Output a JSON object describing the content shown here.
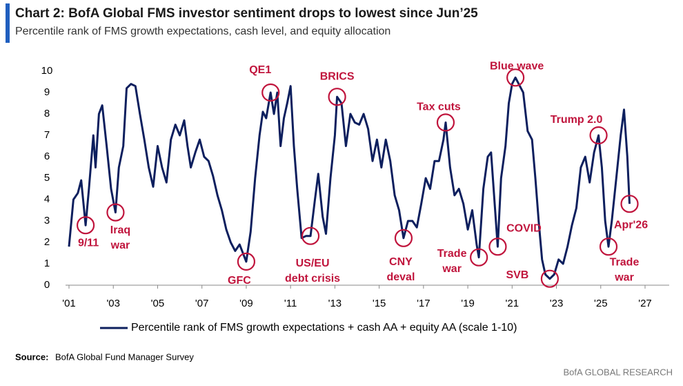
{
  "chart_data": {
    "type": "line",
    "title": "Chart 2: BofA Global FMS investor sentiment drops to lowest since Jun’25",
    "subtitle": "Percentile rank of FMS growth expectations, cash level, and equity allocation",
    "source_label": "Source:",
    "source": "BofA Global Fund Manager Survey",
    "footer": "BofA GLOBAL RESEARCH",
    "xlim": [
      2001,
      2027
    ],
    "ylim": [
      0,
      10
    ],
    "yticks": [
      0,
      1,
      2,
      3,
      4,
      5,
      6,
      7,
      8,
      9,
      10
    ],
    "xticks": [
      {
        "value": 2001,
        "label": "'01"
      },
      {
        "value": 2003,
        "label": "'03"
      },
      {
        "value": 2005,
        "label": "'05"
      },
      {
        "value": 2007,
        "label": "'07"
      },
      {
        "value": 2009,
        "label": "'09"
      },
      {
        "value": 2011,
        "label": "'11"
      },
      {
        "value": 2013,
        "label": "'13"
      },
      {
        "value": 2015,
        "label": "'15"
      },
      {
        "value": 2017,
        "label": "'17"
      },
      {
        "value": 2019,
        "label": "'19"
      },
      {
        "value": 2021,
        "label": "'21"
      },
      {
        "value": 2023,
        "label": "'23"
      },
      {
        "value": 2025,
        "label": "'25"
      },
      {
        "value": 2027,
        "label": "'27"
      }
    ],
    "grid": false,
    "annotation_color": "#c0143c",
    "series": [
      {
        "name": "Percentile rank of FMS growth expectations + cash AA + equity AA (scale 1-10)",
        "color": "#0d1f5e",
        "x": [
          2001.0,
          2001.2,
          2001.4,
          2001.55,
          2001.75,
          2001.9,
          2002.1,
          2002.2,
          2002.35,
          2002.5,
          2002.7,
          2002.9,
          2003.1,
          2003.25,
          2003.45,
          2003.6,
          2003.8,
          2004.0,
          2004.2,
          2004.4,
          2004.6,
          2004.8,
          2005.0,
          2005.2,
          2005.4,
          2005.6,
          2005.8,
          2006.0,
          2006.2,
          2006.35,
          2006.5,
          2006.7,
          2006.9,
          2007.1,
          2007.3,
          2007.5,
          2007.7,
          2007.9,
          2008.1,
          2008.3,
          2008.5,
          2008.7,
          2009.0,
          2009.2,
          2009.4,
          2009.6,
          2009.75,
          2009.9,
          2010.1,
          2010.25,
          2010.4,
          2010.55,
          2010.7,
          2010.85,
          2011.0,
          2011.15,
          2011.3,
          2011.5,
          2011.7,
          2011.9,
          2012.1,
          2012.25,
          2012.45,
          2012.6,
          2012.8,
          2013.0,
          2013.1,
          2013.3,
          2013.5,
          2013.7,
          2013.9,
          2014.1,
          2014.3,
          2014.5,
          2014.7,
          2014.9,
          2015.1,
          2015.3,
          2015.5,
          2015.7,
          2015.9,
          2016.1,
          2016.3,
          2016.5,
          2016.7,
          2016.9,
          2017.1,
          2017.3,
          2017.5,
          2017.7,
          2017.9,
          2018.0,
          2018.2,
          2018.4,
          2018.6,
          2018.8,
          2019.0,
          2019.2,
          2019.4,
          2019.5,
          2019.7,
          2019.9,
          2020.05,
          2020.2,
          2020.35,
          2020.5,
          2020.7,
          2020.85,
          2021.0,
          2021.15,
          2021.3,
          2021.5,
          2021.7,
          2021.9,
          2022.05,
          2022.2,
          2022.35,
          2022.5,
          2022.7,
          2022.9,
          2023.1,
          2023.3,
          2023.5,
          2023.7,
          2023.9,
          2024.1,
          2024.3,
          2024.5,
          2024.7,
          2024.9,
          2025.05,
          2025.2,
          2025.35,
          2025.5,
          2025.7,
          2025.9,
          2026.05,
          2026.2,
          2026.3
        ],
        "values": [
          1.8,
          4.0,
          4.3,
          4.9,
          2.8,
          4.5,
          7.0,
          5.5,
          8.0,
          8.4,
          6.5,
          4.5,
          3.4,
          5.5,
          6.5,
          9.2,
          9.4,
          9.3,
          8.0,
          6.8,
          5.5,
          4.6,
          6.5,
          5.5,
          4.8,
          6.8,
          7.5,
          7.0,
          7.7,
          6.5,
          5.5,
          6.2,
          6.8,
          6.0,
          5.8,
          5.1,
          4.2,
          3.5,
          2.6,
          2.0,
          1.6,
          1.9,
          1.1,
          2.5,
          5.0,
          7.0,
          8.1,
          7.8,
          9.0,
          8.0,
          9.0,
          6.5,
          7.8,
          8.5,
          9.3,
          6.5,
          4.5,
          2.2,
          2.3,
          2.3,
          4.0,
          5.2,
          3.2,
          2.4,
          5.0,
          7.0,
          8.8,
          8.5,
          6.5,
          8.0,
          7.6,
          7.5,
          8.0,
          7.3,
          5.8,
          6.8,
          5.5,
          6.8,
          5.8,
          4.2,
          3.5,
          2.2,
          3.0,
          3.0,
          2.7,
          3.8,
          5.0,
          4.5,
          5.8,
          5.8,
          6.8,
          7.6,
          5.5,
          4.2,
          4.5,
          3.8,
          2.6,
          3.5,
          1.9,
          1.3,
          4.5,
          6.0,
          6.2,
          4.0,
          1.8,
          5.0,
          6.5,
          8.5,
          9.4,
          9.7,
          9.4,
          9.0,
          7.2,
          6.8,
          5.0,
          3.0,
          1.2,
          0.5,
          0.3,
          0.5,
          1.2,
          1.0,
          1.8,
          2.8,
          3.6,
          5.5,
          6.0,
          4.8,
          6.2,
          7.0,
          5.5,
          3.0,
          1.8,
          3.0,
          5.0,
          7.0,
          8.2,
          6.0,
          3.8
        ]
      }
    ],
    "annotations": [
      {
        "lines": [
          "9/11"
        ],
        "x": 2001.75,
        "y": 2.8
      },
      {
        "lines": [
          "Iraq",
          "war"
        ],
        "x": 2003.1,
        "y": 3.4
      },
      {
        "lines": [
          "GFC"
        ],
        "x": 2009.0,
        "y": 1.1
      },
      {
        "lines": [
          "QE1"
        ],
        "x": 2010.1,
        "y": 9.0
      },
      {
        "lines": [
          "US/EU",
          "debt crisis"
        ],
        "x": 2011.9,
        "y": 2.3
      },
      {
        "lines": [
          "BRICS"
        ],
        "x": 2013.1,
        "y": 8.8
      },
      {
        "lines": [
          "CNY",
          "deval"
        ],
        "x": 2016.1,
        "y": 2.2
      },
      {
        "lines": [
          "Tax cuts"
        ],
        "x": 2018.0,
        "y": 7.6
      },
      {
        "lines": [
          "Trade",
          "war"
        ],
        "x": 2019.5,
        "y": 1.3
      },
      {
        "lines": [
          "COVID"
        ],
        "x": 2020.35,
        "y": 1.8
      },
      {
        "lines": [
          "Blue wave"
        ],
        "x": 2021.15,
        "y": 9.7
      },
      {
        "lines": [
          "SVB"
        ],
        "x": 2022.7,
        "y": 0.3
      },
      {
        "lines": [
          "Trump 2.0"
        ],
        "x": 2024.9,
        "y": 7.0
      },
      {
        "lines": [
          "Trade",
          "war"
        ],
        "x": 2025.35,
        "y": 1.8
      },
      {
        "lines": [
          "Apr'26"
        ],
        "x": 2026.3,
        "y": 3.8
      }
    ]
  }
}
